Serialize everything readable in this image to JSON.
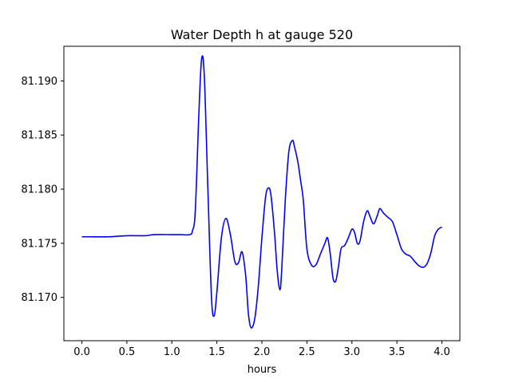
{
  "chart_data": {
    "type": "line",
    "title": "Water Depth h at gauge 520",
    "xlabel": "hours",
    "ylabel": "",
    "xlim": [
      -0.2,
      4.2
    ],
    "ylim": [
      81.166,
      81.1932
    ],
    "x_ticks": [
      0.0,
      0.5,
      1.0,
      1.5,
      2.0,
      2.5,
      3.0,
      3.5,
      4.0
    ],
    "x_tick_labels": [
      "0.0",
      "0.5",
      "1.0",
      "1.5",
      "2.0",
      "2.5",
      "3.0",
      "3.5",
      "4.0"
    ],
    "y_ticks": [
      81.17,
      81.175,
      81.18,
      81.185,
      81.19
    ],
    "y_tick_labels": [
      "81.170",
      "81.175",
      "81.180",
      "81.185",
      "81.190"
    ],
    "grid": false,
    "series": [
      {
        "color": "#0000ff",
        "x": [
          0.0,
          0.1,
          0.3,
          0.5,
          0.7,
          0.8,
          1.0,
          1.1,
          1.2,
          1.23,
          1.26,
          1.3,
          1.33,
          1.36,
          1.4,
          1.44,
          1.47,
          1.5,
          1.55,
          1.6,
          1.65,
          1.7,
          1.74,
          1.78,
          1.82,
          1.85,
          1.88,
          1.92,
          1.96,
          2.0,
          2.04,
          2.07,
          2.1,
          2.14,
          2.17,
          2.2,
          2.22,
          2.26,
          2.3,
          2.34,
          2.36,
          2.4,
          2.43,
          2.46,
          2.5,
          2.55,
          2.6,
          2.65,
          2.7,
          2.73,
          2.76,
          2.79,
          2.82,
          2.85,
          2.88,
          2.92,
          2.96,
          3.0,
          3.03,
          3.06,
          3.09,
          3.13,
          3.17,
          3.2,
          3.24,
          3.28,
          3.31,
          3.35,
          3.4,
          3.45,
          3.5,
          3.55,
          3.6,
          3.65,
          3.7,
          3.75,
          3.8,
          3.84,
          3.88,
          3.92,
          3.96,
          4.0
        ],
        "y": [
          81.1756,
          81.1756,
          81.1756,
          81.1757,
          81.1757,
          81.1758,
          81.1758,
          81.1758,
          81.1758,
          81.1762,
          81.178,
          81.187,
          81.192,
          81.1905,
          81.18,
          81.17,
          81.1683,
          81.1705,
          81.1755,
          81.1773,
          81.1758,
          81.1733,
          81.1732,
          81.1742,
          81.172,
          81.1685,
          81.1672,
          81.168,
          81.171,
          81.1755,
          81.1792,
          81.1801,
          81.1795,
          81.176,
          81.1725,
          81.1707,
          81.1725,
          81.179,
          81.1835,
          81.1845,
          81.184,
          81.1825,
          81.1808,
          81.179,
          81.1745,
          81.173,
          81.173,
          81.174,
          81.175,
          81.1755,
          81.174,
          81.1718,
          81.1715,
          81.1728,
          81.1745,
          81.1748,
          81.1755,
          81.1763,
          81.176,
          81.175,
          81.1752,
          81.177,
          81.178,
          81.1775,
          81.1768,
          81.1775,
          81.1782,
          81.1778,
          81.1774,
          81.177,
          81.1758,
          81.1745,
          81.174,
          81.1738,
          81.1733,
          81.1729,
          81.1728,
          81.1732,
          81.1742,
          81.1757,
          81.1763,
          81.1765
        ]
      }
    ]
  }
}
